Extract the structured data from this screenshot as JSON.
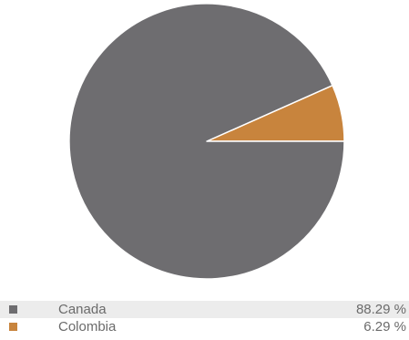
{
  "chart_data": {
    "type": "pie",
    "title": "",
    "slices": [
      {
        "label": "Canada",
        "value": 88.29,
        "value_text": "88.29 %",
        "color": "#6e6d70"
      },
      {
        "label": "Colombia",
        "value": 6.29,
        "value_text": "6.29 %",
        "color": "#c8843d"
      }
    ],
    "legend_placement": "bottom"
  }
}
